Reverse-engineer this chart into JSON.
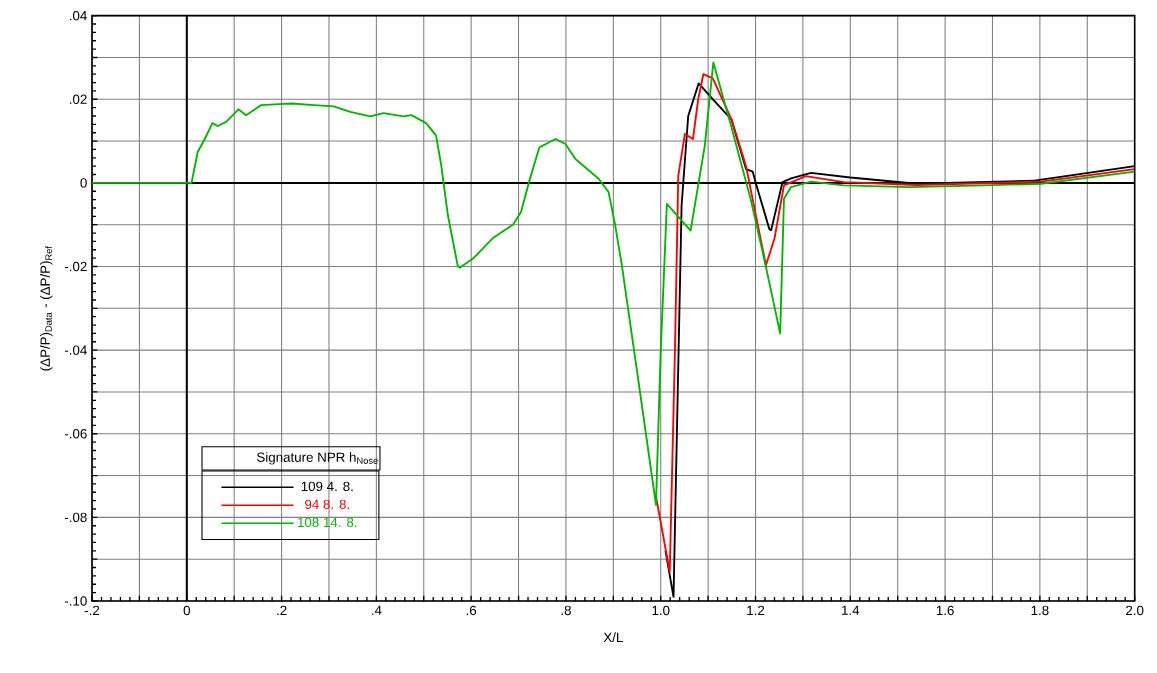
{
  "chart_data": {
    "type": "line",
    "xlabel": "X/L",
    "ylabel": "(ΔP/P)$_{Data}$ - (ΔP/P)$_{Ref}$",
    "legend_title": "Signature     NPR     h$_{Nose}$",
    "legend": "bottom left",
    "grid": true,
    "marker": "none",
    "line_style": "solid",
    "xlim": [
      -0.2,
      2.0
    ],
    "ylim": [
      -0.1,
      0.04
    ],
    "xticks": [
      {
        "value": -0.2,
        "label": "-.2"
      },
      {
        "value": -0.1,
        "label": null
      },
      0,
      {
        "value": 0.1,
        "label": null
      },
      {
        "value": 0.2,
        "label": ".2"
      },
      {
        "value": 0.3,
        "label": null
      },
      {
        "value": 0.4,
        "label": ".4"
      },
      {
        "value": 0.5,
        "label": null
      },
      {
        "value": 0.6,
        "label": ".6"
      },
      {
        "value": 0.7,
        "label": null
      },
      {
        "value": 0.8,
        "label": ".8"
      },
      {
        "value": 0.9,
        "label": null
      },
      {
        "value": 1.0,
        "label": "1.0"
      },
      {
        "value": 1.1,
        "label": null
      },
      {
        "value": 1.2,
        "label": "1.2"
      },
      {
        "value": 1.3,
        "label": null
      },
      {
        "value": 1.4,
        "label": "1.4"
      },
      {
        "value": 1.5,
        "label": null
      },
      {
        "value": 1.6,
        "label": "1.6"
      },
      {
        "value": 1.7,
        "label": null
      },
      {
        "value": 1.8,
        "label": "1.8"
      },
      {
        "value": 1.9,
        "label": null
      },
      {
        "value": 2.0,
        "label": "2.0"
      }
    ],
    "yticks": [
      {
        "value": -0.1,
        "label": "-.10"
      },
      {
        "value": -0.09,
        "label": null
      },
      {
        "value": -0.08,
        "label": "-.08"
      },
      {
        "value": -0.07,
        "label": null
      },
      {
        "value": -0.06,
        "label": "-.06"
      },
      {
        "value": -0.05,
        "label": null
      },
      {
        "value": -0.04,
        "label": "-.04"
      },
      {
        "value": -0.03,
        "label": null
      },
      {
        "value": -0.02,
        "label": "-.02"
      },
      {
        "value": -0.01,
        "label": null
      },
      0,
      {
        "value": 0.01,
        "label": null
      },
      {
        "value": 0.02,
        "label": ".02"
      },
      {
        "value": 0.03,
        "label": null
      },
      {
        "value": 0.04,
        "label": ".04"
      }
    ],
    "series": [
      {
        "name": "109     4.     8.",
        "color": "#000000",
        "x": [
          1.01,
          1.027,
          1.044,
          1.058,
          1.08,
          1.113,
          1.149,
          1.18,
          1.194,
          1.201,
          1.229,
          1.233,
          1.257,
          1.275,
          1.317,
          1.4,
          1.54,
          1.785,
          2.0
        ],
        "values": [
          -0.088,
          -0.099,
          -0.0054,
          0.016,
          0.0238,
          0.0196,
          0.0152,
          0.0033,
          0.0027,
          -0.0002,
          -0.011,
          -0.0113,
          0.0002,
          0.0011,
          0.0024,
          0.0013,
          -0.0002,
          0.0005,
          0.004
        ]
      },
      {
        "name": "94     8.     8.",
        "color": "#ff0000",
        "x": [
          0.99,
          1.019,
          1.03,
          1.037,
          1.051,
          1.068,
          1.079,
          1.09,
          1.11,
          1.15,
          1.18,
          1.198,
          1.222,
          1.24,
          1.26,
          1.306,
          1.386,
          1.54,
          1.802,
          2.0
        ],
        "values": [
          -0.075,
          -0.093,
          -0.04,
          0.0017,
          0.0117,
          0.0105,
          0.02,
          0.026,
          0.025,
          0.015,
          0.004,
          -0.0062,
          -0.0197,
          -0.0133,
          -0.0006,
          0.0016,
          0.0002,
          -0.0005,
          0.0003,
          0.0033
        ]
      },
      {
        "name": "108     14.     8.",
        "color": "#00b400",
        "x": [
          -0.2,
          -0.1,
          0,
          0.01,
          0.023,
          0.038,
          0.054,
          0.065,
          0.083,
          0.109,
          0.125,
          0.157,
          0.205,
          0.222,
          0.268,
          0.31,
          0.345,
          0.387,
          0.415,
          0.457,
          0.474,
          0.505,
          0.526,
          0.537,
          0.551,
          0.572,
          0.576,
          0.604,
          0.646,
          0.688,
          0.705,
          0.723,
          0.744,
          0.778,
          0.799,
          0.82,
          0.869,
          0.89,
          0.904,
          0.918,
          0.95,
          0.99,
          1.0,
          1.013,
          1.063,
          1.093,
          1.111,
          1.15,
          1.19,
          1.218,
          1.252,
          1.26,
          1.275,
          1.317,
          1.386,
          1.526,
          1.68,
          1.802,
          2.0
        ],
        "values": [
          0,
          0,
          0,
          0,
          0.0074,
          0.0105,
          0.0143,
          0.0136,
          0.0146,
          0.0176,
          0.0162,
          0.0186,
          0.0189,
          0.019,
          0.0186,
          0.0183,
          0.017,
          0.0159,
          0.0167,
          0.0159,
          0.0162,
          0.0143,
          0.0113,
          0.0041,
          -0.0078,
          -0.02,
          -0.0203,
          -0.0181,
          -0.0132,
          -0.01,
          -0.007,
          0.0006,
          0.0085,
          0.0105,
          0.0093,
          0.0057,
          0.001,
          -0.0022,
          -0.0102,
          -0.0197,
          -0.045,
          -0.077,
          -0.04,
          -0.005,
          -0.0114,
          0.0089,
          0.0288,
          0.013,
          -0.004,
          -0.018,
          -0.036,
          -0.0038,
          -0.001,
          0.0003,
          -0.0006,
          -0.001,
          -0.0006,
          -0.0002,
          0.0027
        ]
      }
    ]
  }
}
